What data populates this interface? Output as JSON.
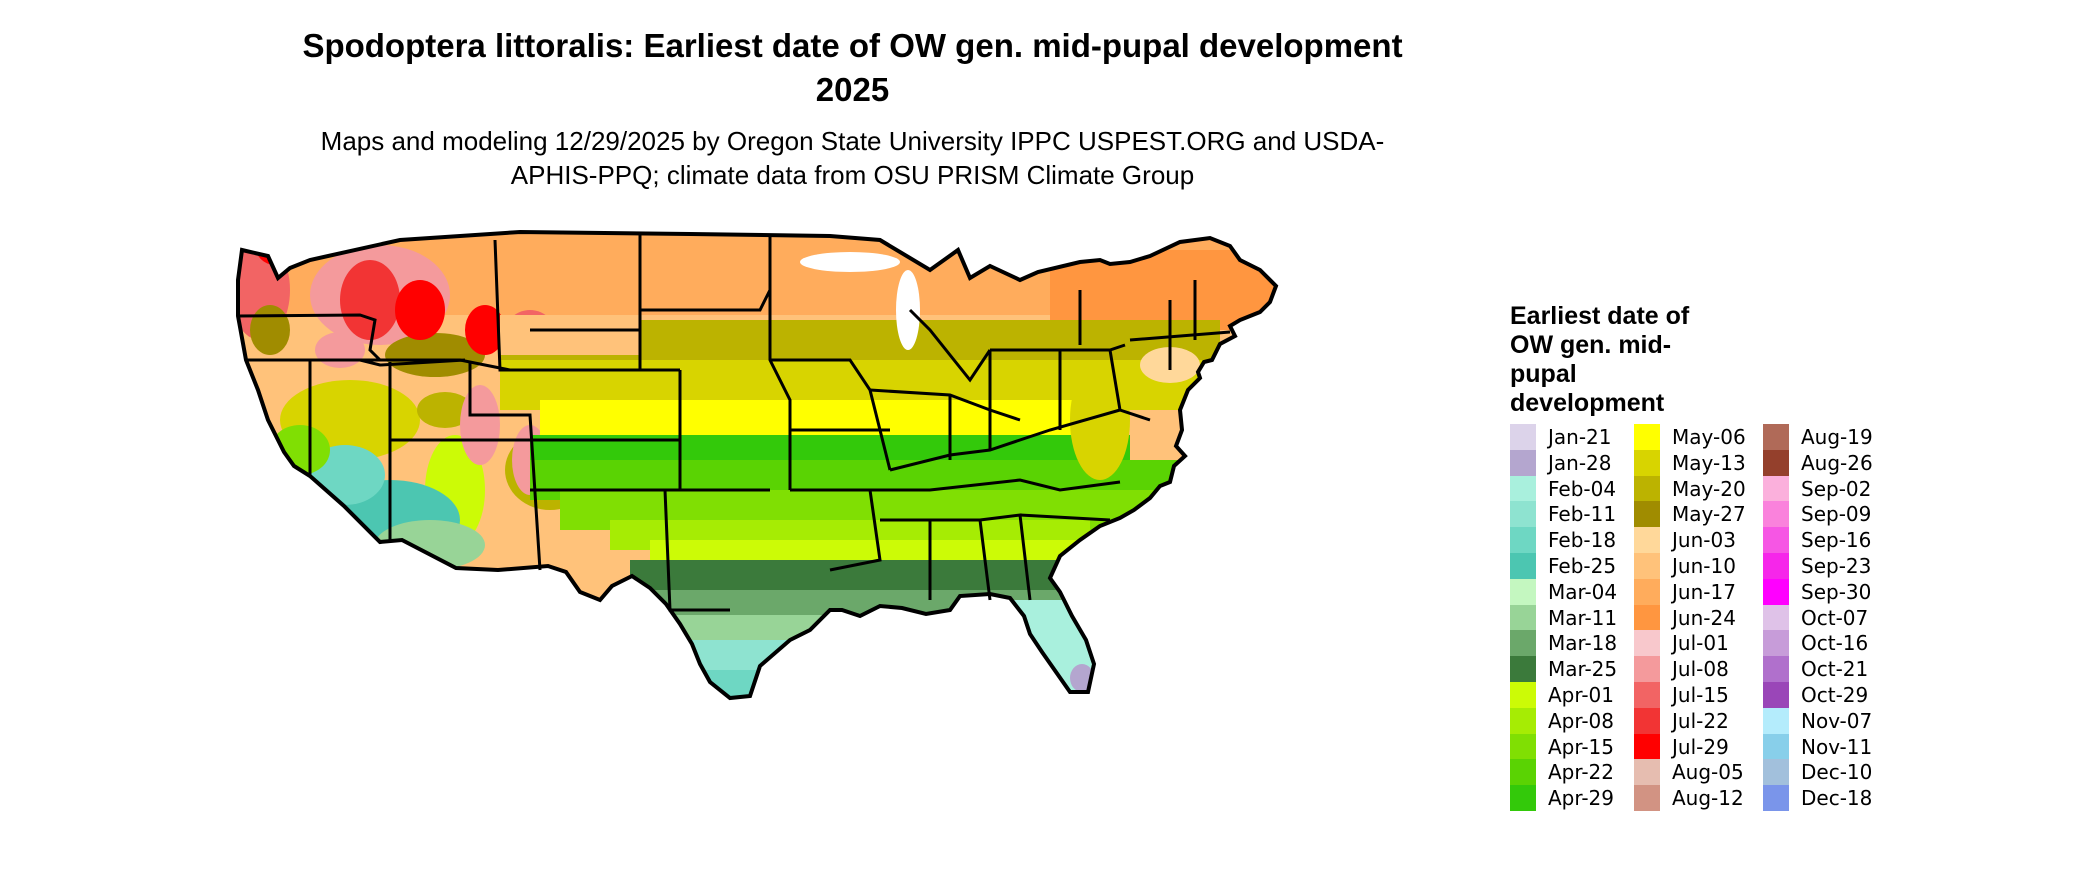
{
  "title": "Spodoptera littoralis: Earliest date of OW gen. mid-pupal development 2025",
  "subtitle": "Maps and modeling 12/29/2025 by Oregon State University IPPC USPEST.ORG and USDA-APHIS-PPQ; climate data from OSU PRISM Climate Group",
  "legend": {
    "title": "Earliest date of OW gen. mid-pupal development",
    "columns": [
      [
        {
          "label": "Jan-21",
          "color": "#dcd3ea"
        },
        {
          "label": "Jan-28",
          "color": "#b4a6cf"
        },
        {
          "label": "Feb-04",
          "color": "#a9f0dd"
        },
        {
          "label": "Feb-11",
          "color": "#8ee3d0"
        },
        {
          "label": "Feb-18",
          "color": "#6ed7c3"
        },
        {
          "label": "Feb-25",
          "color": "#4cc6b1"
        },
        {
          "label": "Mar-04",
          "color": "#c4f7c0"
        },
        {
          "label": "Mar-11",
          "color": "#98d497"
        },
        {
          "label": "Mar-18",
          "color": "#6ba86a"
        },
        {
          "label": "Mar-25",
          "color": "#3b7a3b"
        },
        {
          "label": "Apr-01",
          "color": "#ccfb06"
        },
        {
          "label": "Apr-08",
          "color": "#a6ec04"
        },
        {
          "label": "Apr-15",
          "color": "#80df03"
        },
        {
          "label": "Apr-22",
          "color": "#5ad303"
        },
        {
          "label": "Apr-29",
          "color": "#33c90a"
        }
      ],
      [
        {
          "label": "May-06",
          "color": "#ffff00"
        },
        {
          "label": "May-13",
          "color": "#d8d400"
        },
        {
          "label": "May-20",
          "color": "#bcb300"
        },
        {
          "label": "May-27",
          "color": "#a08c00"
        },
        {
          "label": "Jun-03",
          "color": "#ffd89a"
        },
        {
          "label": "Jun-10",
          "color": "#ffc27a"
        },
        {
          "label": "Jun-17",
          "color": "#ffac5c"
        },
        {
          "label": "Jun-24",
          "color": "#ff9640"
        },
        {
          "label": "Jul-01",
          "color": "#f8c8cc"
        },
        {
          "label": "Jul-08",
          "color": "#f49a9c"
        },
        {
          "label": "Jul-15",
          "color": "#f26464"
        },
        {
          "label": "Jul-22",
          "color": "#f23434"
        },
        {
          "label": "Jul-29",
          "color": "#ff0000"
        },
        {
          "label": "Aug-05",
          "color": "#e6bdb0"
        },
        {
          "label": "Aug-12",
          "color": "#d29383"
        }
      ],
      [
        {
          "label": "Aug-19",
          "color": "#b06a58"
        },
        {
          "label": "Aug-26",
          "color": "#94402c"
        },
        {
          "label": "Sep-02",
          "color": "#fbb0dc"
        },
        {
          "label": "Sep-09",
          "color": "#fa82dc"
        },
        {
          "label": "Sep-16",
          "color": "#f656e4"
        },
        {
          "label": "Sep-23",
          "color": "#f626ea"
        },
        {
          "label": "Sep-30",
          "color": "#ff00ff"
        },
        {
          "label": "Oct-07",
          "color": "#dfc2e8"
        },
        {
          "label": "Oct-16",
          "color": "#c79cd9"
        },
        {
          "label": "Oct-21",
          "color": "#b070cc"
        },
        {
          "label": "Oct-29",
          "color": "#9a46b8"
        },
        {
          "label": "Nov-07",
          "color": "#b4ecfc"
        },
        {
          "label": "Nov-11",
          "color": "#88cfea"
        },
        {
          "label": "Dec-10",
          "color": "#a2c0dc"
        },
        {
          "label": "Dec-18",
          "color": "#7a95ea"
        }
      ]
    ]
  }
}
